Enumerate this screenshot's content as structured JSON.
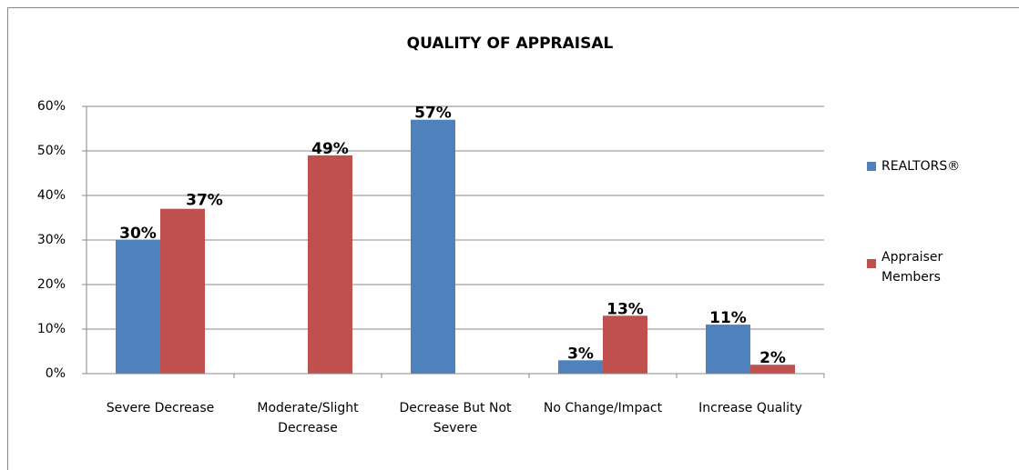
{
  "chart_data": {
    "type": "bar",
    "title": "QUALITY OF APPRAISAL",
    "categories": [
      "Severe Decrease",
      "Moderate/Slight Decrease",
      "Decrease But Not Severe",
      "No Change/Impact",
      "Increase Quality"
    ],
    "series": [
      {
        "name": "REALTORS®",
        "color": "#4f81bd",
        "values": [
          30,
          null,
          57,
          3,
          11
        ],
        "value_labels": [
          "30%",
          null,
          "57%",
          "3%",
          "11%"
        ]
      },
      {
        "name": "Appraiser Members",
        "color": "#c0504d",
        "values": [
          37,
          49,
          null,
          13,
          2
        ],
        "value_labels": [
          "37%",
          "49%",
          null,
          "13%",
          "2%"
        ]
      }
    ],
    "ylim": [
      0,
      60
    ],
    "yticks": [
      {
        "value": 0,
        "label": "0%"
      },
      {
        "value": 10,
        "label": "10%"
      },
      {
        "value": 20,
        "label": "20%"
      },
      {
        "value": 30,
        "label": "30%"
      },
      {
        "value": 40,
        "label": "40%"
      },
      {
        "value": 50,
        "label": "50%"
      },
      {
        "value": 60,
        "label": "60%"
      }
    ],
    "grid": true,
    "legend": "right"
  }
}
